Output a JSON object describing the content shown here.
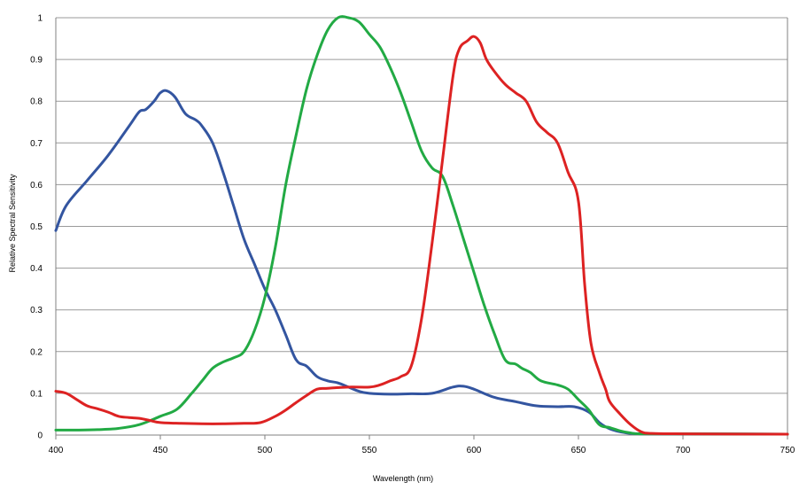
{
  "chart_data": {
    "type": "line",
    "title": "",
    "xlabel": "Wavelength (nm)",
    "ylabel": "Relative Spectral Sensitivity",
    "xlim": [
      400,
      750
    ],
    "ylim": [
      0,
      1
    ],
    "grid": true,
    "legend": "none",
    "x_ticks": [
      "400",
      "450",
      "500",
      "550",
      "600",
      "650",
      "700",
      "750"
    ],
    "y_ticks": [
      "0",
      "0.1",
      "0.2",
      "0.3",
      "0.4",
      "0.5",
      "0.6",
      "0.7",
      "0.8",
      "0.9",
      "1"
    ],
    "series": [
      {
        "color": "#3355a0",
        "points": [
          [
            400,
            0.49
          ],
          [
            405,
            0.55
          ],
          [
            415,
            0.61
          ],
          [
            425,
            0.67
          ],
          [
            435,
            0.74
          ],
          [
            440,
            0.775
          ],
          [
            443,
            0.78
          ],
          [
            447,
            0.8
          ],
          [
            450,
            0.82
          ],
          [
            453,
            0.825
          ],
          [
            457,
            0.81
          ],
          [
            462,
            0.77
          ],
          [
            467,
            0.755
          ],
          [
            470,
            0.74
          ],
          [
            475,
            0.7
          ],
          [
            480,
            0.63
          ],
          [
            485,
            0.55
          ],
          [
            490,
            0.47
          ],
          [
            495,
            0.41
          ],
          [
            500,
            0.35
          ],
          [
            505,
            0.3
          ],
          [
            510,
            0.24
          ],
          [
            515,
            0.18
          ],
          [
            520,
            0.165
          ],
          [
            525,
            0.14
          ],
          [
            530,
            0.13
          ],
          [
            535,
            0.125
          ],
          [
            540,
            0.115
          ],
          [
            545,
            0.105
          ],
          [
            550,
            0.1
          ],
          [
            560,
            0.098
          ],
          [
            570,
            0.099
          ],
          [
            580,
            0.1
          ],
          [
            590,
            0.115
          ],
          [
            595,
            0.117
          ],
          [
            600,
            0.11
          ],
          [
            610,
            0.09
          ],
          [
            620,
            0.08
          ],
          [
            630,
            0.07
          ],
          [
            640,
            0.068
          ],
          [
            648,
            0.068
          ],
          [
            655,
            0.055
          ],
          [
            660,
            0.03
          ],
          [
            665,
            0.015
          ],
          [
            672,
            0.006
          ],
          [
            680,
            0.003
          ],
          [
            700,
            0.003
          ],
          [
            750,
            0.002
          ]
        ]
      },
      {
        "color": "#22aa44",
        "points": [
          [
            400,
            0.012
          ],
          [
            410,
            0.012
          ],
          [
            420,
            0.013
          ],
          [
            430,
            0.016
          ],
          [
            440,
            0.025
          ],
          [
            450,
            0.045
          ],
          [
            458,
            0.062
          ],
          [
            465,
            0.1
          ],
          [
            470,
            0.13
          ],
          [
            475,
            0.16
          ],
          [
            480,
            0.175
          ],
          [
            485,
            0.185
          ],
          [
            490,
            0.2
          ],
          [
            495,
            0.25
          ],
          [
            500,
            0.33
          ],
          [
            505,
            0.45
          ],
          [
            510,
            0.6
          ],
          [
            515,
            0.72
          ],
          [
            520,
            0.83
          ],
          [
            525,
            0.91
          ],
          [
            530,
            0.97
          ],
          [
            535,
            1.0
          ],
          [
            540,
            1.0
          ],
          [
            545,
            0.99
          ],
          [
            550,
            0.96
          ],
          [
            555,
            0.93
          ],
          [
            560,
            0.88
          ],
          [
            565,
            0.82
          ],
          [
            570,
            0.75
          ],
          [
            575,
            0.68
          ],
          [
            580,
            0.64
          ],
          [
            585,
            0.62
          ],
          [
            590,
            0.55
          ],
          [
            595,
            0.47
          ],
          [
            600,
            0.39
          ],
          [
            605,
            0.31
          ],
          [
            610,
            0.24
          ],
          [
            615,
            0.18
          ],
          [
            620,
            0.17
          ],
          [
            623,
            0.16
          ],
          [
            627,
            0.15
          ],
          [
            632,
            0.13
          ],
          [
            640,
            0.12
          ],
          [
            645,
            0.11
          ],
          [
            650,
            0.085
          ],
          [
            655,
            0.06
          ],
          [
            660,
            0.025
          ],
          [
            665,
            0.018
          ],
          [
            670,
            0.01
          ],
          [
            675,
            0.005
          ],
          [
            680,
            0.003
          ],
          [
            700,
            0.003
          ],
          [
            750,
            0.002
          ]
        ]
      },
      {
        "color": "#dd2222",
        "points": [
          [
            400,
            0.105
          ],
          [
            405,
            0.1
          ],
          [
            410,
            0.085
          ],
          [
            415,
            0.07
          ],
          [
            420,
            0.063
          ],
          [
            425,
            0.055
          ],
          [
            430,
            0.045
          ],
          [
            435,
            0.042
          ],
          [
            440,
            0.04
          ],
          [
            445,
            0.035
          ],
          [
            450,
            0.03
          ],
          [
            460,
            0.028
          ],
          [
            470,
            0.027
          ],
          [
            480,
            0.027
          ],
          [
            490,
            0.028
          ],
          [
            498,
            0.03
          ],
          [
            505,
            0.045
          ],
          [
            510,
            0.06
          ],
          [
            515,
            0.078
          ],
          [
            520,
            0.095
          ],
          [
            525,
            0.11
          ],
          [
            530,
            0.112
          ],
          [
            540,
            0.115
          ],
          [
            550,
            0.115
          ],
          [
            555,
            0.12
          ],
          [
            560,
            0.13
          ],
          [
            565,
            0.14
          ],
          [
            570,
            0.165
          ],
          [
            575,
            0.28
          ],
          [
            580,
            0.46
          ],
          [
            585,
            0.66
          ],
          [
            590,
            0.86
          ],
          [
            593,
            0.925
          ],
          [
            597,
            0.945
          ],
          [
            600,
            0.955
          ],
          [
            603,
            0.94
          ],
          [
            606,
            0.9
          ],
          [
            610,
            0.87
          ],
          [
            615,
            0.84
          ],
          [
            620,
            0.82
          ],
          [
            625,
            0.8
          ],
          [
            630,
            0.75
          ],
          [
            635,
            0.725
          ],
          [
            640,
            0.7
          ],
          [
            645,
            0.63
          ],
          [
            650,
            0.56
          ],
          [
            653,
            0.36
          ],
          [
            656,
            0.22
          ],
          [
            660,
            0.15
          ],
          [
            663,
            0.11
          ],
          [
            665,
            0.08
          ],
          [
            670,
            0.05
          ],
          [
            675,
            0.025
          ],
          [
            680,
            0.008
          ],
          [
            685,
            0.004
          ],
          [
            700,
            0.003
          ],
          [
            750,
            0.002
          ]
        ]
      }
    ]
  }
}
